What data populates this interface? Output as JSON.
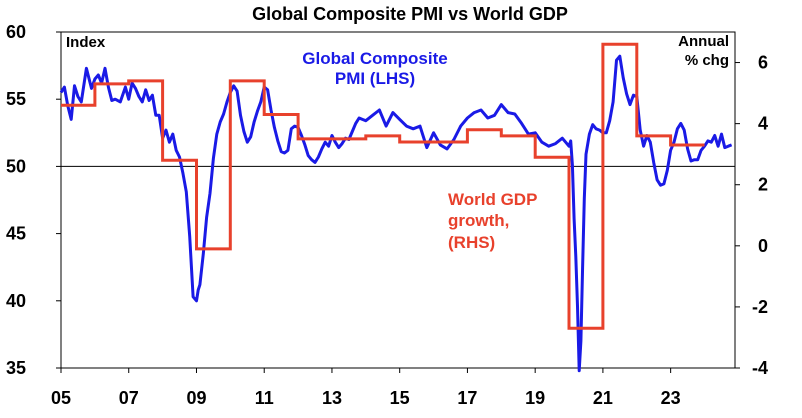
{
  "chart_data": {
    "type": "line",
    "title": "Global Composite PMI vs World GDP",
    "left_axis": {
      "label": "Index",
      "ylim": [
        35,
        60
      ],
      "ticks": [
        35,
        40,
        45,
        50,
        55,
        60
      ]
    },
    "right_axis": {
      "label_line1": "Annual",
      "label_line2": "% chg",
      "ylim": [
        -4,
        7
      ],
      "ticks": [
        -4,
        -2,
        0,
        2,
        4,
        6
      ]
    },
    "x_axis": {
      "xlim": [
        2005,
        2024.9
      ],
      "ticks": [
        2005,
        2007,
        2009,
        2011,
        2013,
        2015,
        2017,
        2019,
        2021,
        2023
      ],
      "tick_labels": [
        "05",
        "07",
        "09",
        "11",
        "13",
        "15",
        "17",
        "19",
        "21",
        "23"
      ]
    },
    "reference_line": {
      "axis": "left",
      "value": 50
    },
    "annotations": {
      "pmi_line1": "Global Composite",
      "pmi_line2": "PMI (LHS)",
      "gdp_line1": "World GDP",
      "gdp_line2": "growth,",
      "gdp_line3": "(RHS)"
    },
    "colors": {
      "pmi": "#1a1ae6",
      "gdp": "#e8412c"
    },
    "series": [
      {
        "name": "Global Composite PMI (LHS)",
        "axis": "left",
        "x": [
          2005.0,
          2005.1,
          2005.2,
          2005.3,
          2005.4,
          2005.5,
          2005.6,
          2005.75,
          2005.9,
          2006.0,
          2006.1,
          2006.2,
          2006.3,
          2006.4,
          2006.5,
          2006.6,
          2006.75,
          2006.9,
          2007.0,
          2007.1,
          2007.2,
          2007.3,
          2007.4,
          2007.5,
          2007.6,
          2007.7,
          2007.8,
          2007.9,
          2008.0,
          2008.1,
          2008.2,
          2008.3,
          2008.4,
          2008.5,
          2008.6,
          2008.7,
          2008.8,
          2008.9,
          2009.0,
          2009.05,
          2009.1,
          2009.2,
          2009.3,
          2009.4,
          2009.5,
          2009.6,
          2009.7,
          2009.8,
          2009.9,
          2010.0,
          2010.1,
          2010.2,
          2010.3,
          2010.4,
          2010.5,
          2010.6,
          2010.7,
          2010.8,
          2010.9,
          2011.0,
          2011.1,
          2011.2,
          2011.3,
          2011.4,
          2011.5,
          2011.6,
          2011.7,
          2011.8,
          2011.9,
          2012.0,
          2012.1,
          2012.2,
          2012.3,
          2012.4,
          2012.5,
          2012.6,
          2012.7,
          2012.8,
          2012.9,
          2013.0,
          2013.1,
          2013.2,
          2013.3,
          2013.4,
          2013.5,
          2013.6,
          2013.7,
          2013.8,
          2013.9,
          2014.0,
          2014.2,
          2014.4,
          2014.6,
          2014.8,
          2015.0,
          2015.2,
          2015.4,
          2015.6,
          2015.8,
          2016.0,
          2016.2,
          2016.4,
          2016.6,
          2016.8,
          2017.0,
          2017.2,
          2017.4,
          2017.6,
          2017.8,
          2018.0,
          2018.2,
          2018.4,
          2018.6,
          2018.8,
          2019.0,
          2019.2,
          2019.4,
          2019.6,
          2019.8,
          2020.0,
          2020.05,
          2020.1,
          2020.15,
          2020.2,
          2020.25,
          2020.3,
          2020.35,
          2020.4,
          2020.45,
          2020.5,
          2020.6,
          2020.7,
          2020.8,
          2020.9,
          2021.0,
          2021.1,
          2021.2,
          2021.3,
          2021.4,
          2021.5,
          2021.6,
          2021.7,
          2021.8,
          2021.9,
          2022.0,
          2022.1,
          2022.2,
          2022.3,
          2022.4,
          2022.5,
          2022.6,
          2022.7,
          2022.8,
          2022.9,
          2023.0,
          2023.1,
          2023.2,
          2023.3,
          2023.4,
          2023.5,
          2023.6,
          2023.7,
          2023.8,
          2023.9,
          2024.0,
          2024.1,
          2024.2,
          2024.3,
          2024.4,
          2024.5,
          2024.6,
          2024.7,
          2024.8
        ],
        "values": [
          55.5,
          55.9,
          54.5,
          53.5,
          56.0,
          55.2,
          54.8,
          57.3,
          55.8,
          56.5,
          56.8,
          56.2,
          57.3,
          55.9,
          54.9,
          55.0,
          54.8,
          55.9,
          55.0,
          56.2,
          55.8,
          55.2,
          54.8,
          55.7,
          54.9,
          55.3,
          53.8,
          53.8,
          52.1,
          52.7,
          51.8,
          52.4,
          51.2,
          50.7,
          49.5,
          48.1,
          44.8,
          40.3,
          40.0,
          40.8,
          41.2,
          43.5,
          46.2,
          48.0,
          50.6,
          52.4,
          53.3,
          53.9,
          54.8,
          55.5,
          56.0,
          55.6,
          53.8,
          52.6,
          51.8,
          52.2,
          53.3,
          54.1,
          54.8,
          55.9,
          55.7,
          54.2,
          52.9,
          51.9,
          51.1,
          51.0,
          51.2,
          52.8,
          53.0,
          52.9,
          52.3,
          51.6,
          50.8,
          50.5,
          50.3,
          50.7,
          51.3,
          51.8,
          51.5,
          52.3,
          51.8,
          51.4,
          51.7,
          52.1,
          52.0,
          52.6,
          53.2,
          53.6,
          53.5,
          53.4,
          53.8,
          54.2,
          53.0,
          54.0,
          53.5,
          53.0,
          52.8,
          53.0,
          51.4,
          52.5,
          51.6,
          51.3,
          52.0,
          53.0,
          53.6,
          54.0,
          54.2,
          53.6,
          53.8,
          54.6,
          54.0,
          53.9,
          53.2,
          52.4,
          52.5,
          51.8,
          51.5,
          51.7,
          52.1,
          51.5,
          51.9,
          50.1,
          46.1,
          43.3,
          39.6,
          34.8,
          37.0,
          42.5,
          47.6,
          50.9,
          52.4,
          53.1,
          52.8,
          52.7,
          52.5,
          52.5,
          53.4,
          54.8,
          57.9,
          58.2,
          56.6,
          55.4,
          54.6,
          55.3,
          55.2,
          52.7,
          51.5,
          52.3,
          51.8,
          50.3,
          49.0,
          48.6,
          48.7,
          49.7,
          51.2,
          51.8,
          52.8,
          53.2,
          52.7,
          51.3,
          50.4,
          50.5,
          50.5,
          51.2,
          51.5,
          51.9,
          51.8,
          52.3,
          51.5,
          52.4,
          51.4,
          51.5,
          51.6
        ],
        "color": "#1a1ae6"
      },
      {
        "name": "World GDP growth (RHS)",
        "axis": "right",
        "step": true,
        "x": [
          2005.0,
          2006.0,
          2006.0,
          2007.0,
          2007.0,
          2008.0,
          2008.0,
          2009.0,
          2009.0,
          2010.0,
          2010.0,
          2011.0,
          2011.0,
          2012.0,
          2012.0,
          2013.0,
          2013.0,
          2014.0,
          2014.0,
          2015.0,
          2015.0,
          2016.0,
          2016.0,
          2017.0,
          2017.0,
          2018.0,
          2018.0,
          2019.0,
          2019.0,
          2020.0,
          2020.0,
          2021.0,
          2021.0,
          2022.0,
          2022.0,
          2023.0,
          2023.0,
          2024.0
        ],
        "values": [
          4.6,
          4.6,
          5.3,
          5.3,
          5.4,
          5.4,
          2.8,
          2.8,
          -0.1,
          -0.1,
          5.4,
          5.4,
          4.3,
          4.3,
          3.5,
          3.5,
          3.5,
          3.5,
          3.6,
          3.6,
          3.4,
          3.4,
          3.4,
          3.4,
          3.8,
          3.8,
          3.6,
          3.6,
          2.9,
          2.9,
          -2.7,
          -2.7,
          6.6,
          6.6,
          3.6,
          3.6,
          3.3,
          3.3
        ],
        "color": "#e8412c"
      }
    ]
  }
}
